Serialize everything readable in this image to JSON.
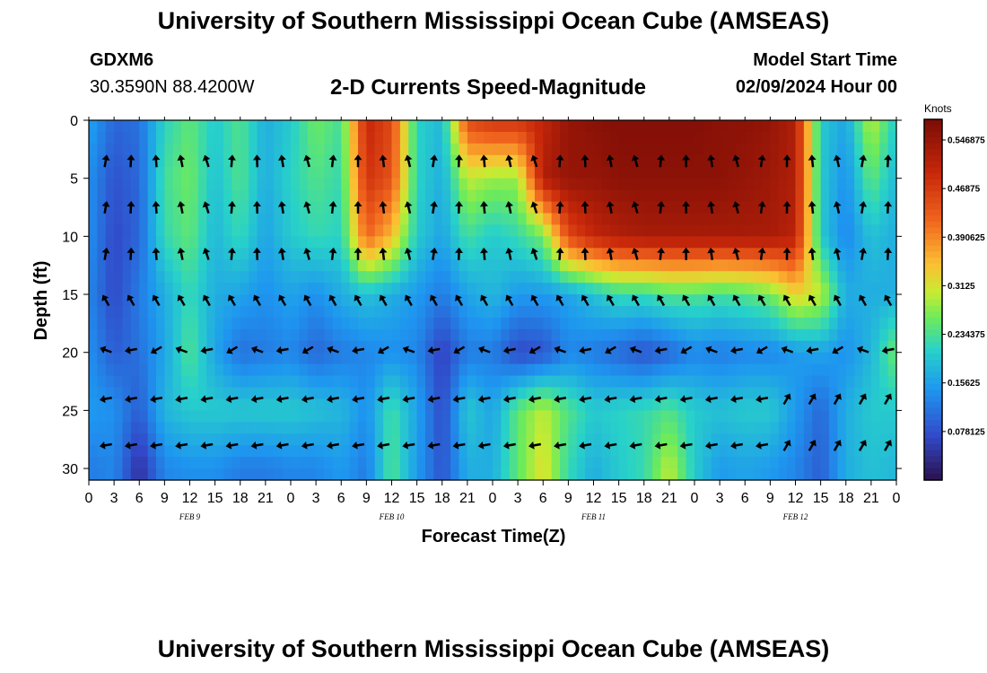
{
  "title": "University of Southern Mississippi Ocean Cube (AMSEAS)",
  "station": {
    "id": "GDXM6",
    "coords": "30.3590N  88.4200W"
  },
  "product": "2-D Currents Speed-Magnitude",
  "model_start": {
    "label": "Model Start Time",
    "value": "02/09/2024 Hour 00"
  },
  "footer_title": "University of Southern Mississippi Ocean Cube (AMSEAS)",
  "chart_data": {
    "type": "heatmap",
    "title": "2-D Currents Speed-Magnitude",
    "xlabel": "Forecast Time(Z)",
    "ylabel": "Depth (ft)",
    "x_hours_range": [
      0,
      96
    ],
    "ylim": [
      31,
      0
    ],
    "x_tick_labels": [
      "0",
      "3",
      "6",
      "9",
      "12",
      "15",
      "18",
      "21",
      "0",
      "3",
      "6",
      "9",
      "12",
      "15",
      "18",
      "21",
      "0",
      "3",
      "6",
      "9",
      "12",
      "15",
      "18",
      "21",
      "0",
      "3",
      "6",
      "9",
      "12",
      "15",
      "18",
      "21",
      "0"
    ],
    "y_ticks": [
      0,
      5,
      10,
      15,
      20,
      25,
      30
    ],
    "day_labels": [
      "FEB 9",
      "FEB 10",
      "FEB 11",
      "FEB 12"
    ],
    "colorbar": {
      "label": "Knots",
      "ticks": [
        "0.546875",
        "0.46875",
        "0.390625",
        "0.3125",
        "0.234375",
        "0.15625",
        "0.078125"
      ],
      "range": [
        0.0,
        0.58
      ]
    },
    "arrow_depths_ft": [
      3.5,
      7.5,
      11.5,
      15.5,
      19.8,
      24,
      28
    ],
    "arrow_hours": [
      2,
      5,
      8,
      11,
      14,
      17,
      20,
      23,
      26,
      29,
      32,
      35,
      38,
      41,
      44,
      47,
      50,
      53,
      56,
      59,
      62,
      65,
      68,
      71,
      74,
      77,
      80,
      83,
      86,
      89,
      92,
      95
    ],
    "speed_samples": {
      "hours": [
        0,
        3,
        6,
        9,
        12,
        15,
        18,
        21,
        24,
        27,
        30,
        33,
        36,
        39,
        42,
        45,
        48,
        51,
        54,
        57,
        60,
        63,
        66,
        69,
        72,
        75,
        78,
        81,
        84,
        87,
        90,
        93,
        96
      ],
      "depths_ft": [
        0,
        5,
        10,
        15,
        20,
        25,
        30
      ],
      "knots": [
        [
          0.16,
          0.1,
          0.11,
          0.21,
          0.25,
          0.2,
          0.24,
          0.17,
          0.2,
          0.26,
          0.23,
          0.5,
          0.45,
          0.21,
          0.18,
          0.45,
          0.48,
          0.48,
          0.5,
          0.55,
          0.56,
          0.57,
          0.57,
          0.57,
          0.57,
          0.56,
          0.56,
          0.55,
          0.52,
          0.2,
          0.16,
          0.3,
          0.2
        ],
        [
          0.14,
          0.08,
          0.1,
          0.23,
          0.26,
          0.19,
          0.24,
          0.17,
          0.21,
          0.24,
          0.22,
          0.48,
          0.44,
          0.21,
          0.17,
          0.3,
          0.28,
          0.28,
          0.52,
          0.55,
          0.55,
          0.56,
          0.56,
          0.56,
          0.56,
          0.56,
          0.55,
          0.54,
          0.52,
          0.2,
          0.14,
          0.25,
          0.18
        ],
        [
          0.14,
          0.07,
          0.1,
          0.22,
          0.25,
          0.18,
          0.22,
          0.16,
          0.2,
          0.22,
          0.21,
          0.42,
          0.35,
          0.2,
          0.16,
          0.23,
          0.2,
          0.22,
          0.26,
          0.45,
          0.5,
          0.52,
          0.53,
          0.53,
          0.53,
          0.53,
          0.53,
          0.53,
          0.51,
          0.2,
          0.13,
          0.19,
          0.17
        ],
        [
          0.13,
          0.07,
          0.12,
          0.17,
          0.22,
          0.17,
          0.16,
          0.14,
          0.16,
          0.14,
          0.17,
          0.19,
          0.17,
          0.15,
          0.12,
          0.16,
          0.18,
          0.15,
          0.15,
          0.16,
          0.19,
          0.22,
          0.22,
          0.24,
          0.24,
          0.23,
          0.24,
          0.26,
          0.33,
          0.3,
          0.17,
          0.17,
          0.17
        ],
        [
          0.14,
          0.09,
          0.11,
          0.16,
          0.24,
          0.16,
          0.11,
          0.12,
          0.13,
          0.1,
          0.12,
          0.13,
          0.14,
          0.13,
          0.06,
          0.12,
          0.12,
          0.07,
          0.08,
          0.13,
          0.12,
          0.1,
          0.08,
          0.1,
          0.13,
          0.12,
          0.13,
          0.13,
          0.15,
          0.16,
          0.14,
          0.18,
          0.26
        ],
        [
          0.15,
          0.14,
          0.09,
          0.18,
          0.2,
          0.2,
          0.2,
          0.2,
          0.2,
          0.19,
          0.18,
          0.14,
          0.23,
          0.16,
          0.07,
          0.2,
          0.16,
          0.25,
          0.3,
          0.24,
          0.2,
          0.21,
          0.22,
          0.24,
          0.2,
          0.19,
          0.2,
          0.2,
          0.15,
          0.1,
          0.17,
          0.2,
          0.2
        ],
        [
          0.12,
          0.13,
          0.04,
          0.13,
          0.14,
          0.14,
          0.12,
          0.12,
          0.13,
          0.13,
          0.15,
          0.12,
          0.24,
          0.15,
          0.08,
          0.17,
          0.17,
          0.25,
          0.32,
          0.22,
          0.17,
          0.2,
          0.22,
          0.3,
          0.2,
          0.15,
          0.16,
          0.15,
          0.13,
          0.09,
          0.17,
          0.19,
          0.18
        ]
      ]
    }
  }
}
